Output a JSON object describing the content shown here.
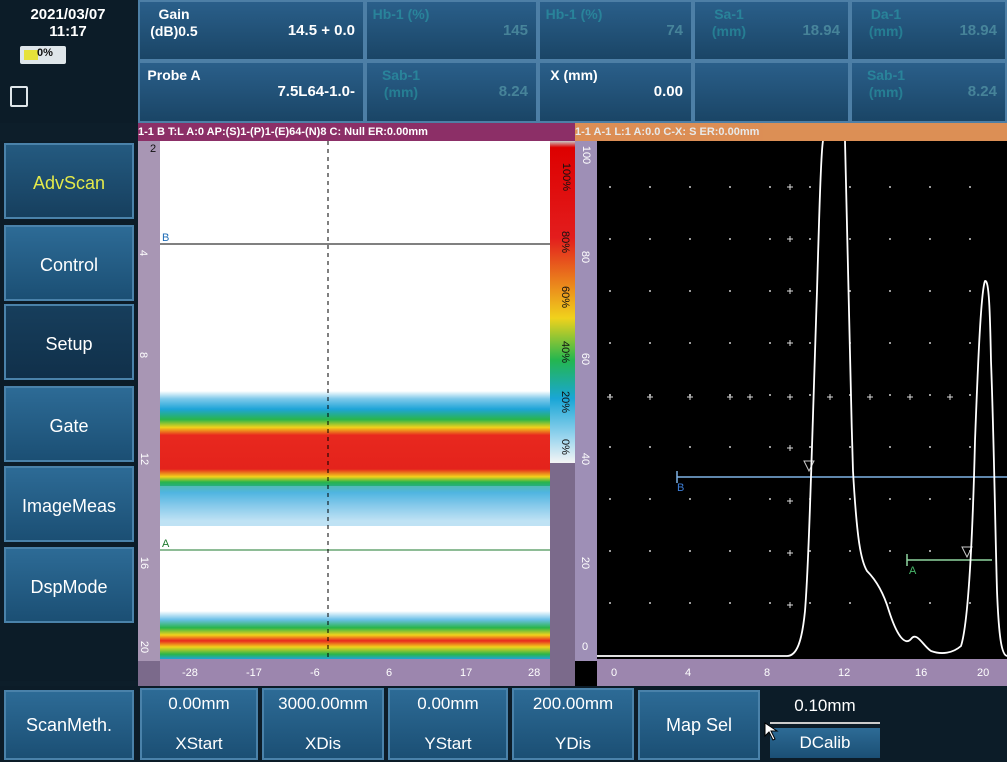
{
  "status": {
    "date": "2021/03/07",
    "time": "11:17",
    "battery_text": "0%"
  },
  "header_cells": [
    {
      "label": "Gain (dB)0.5",
      "value": "14.5 + 0.0",
      "faint": false
    },
    {
      "label": "Hb-1 (%)",
      "value": "145",
      "faint": true
    },
    {
      "label": "Hb-1 (%)",
      "value": "74",
      "faint": true
    },
    {
      "label": "Sa-1 (mm)",
      "value": "18.94",
      "faint": true
    },
    {
      "label": "Da-1 (mm)",
      "value": "18.94",
      "faint": true
    },
    {
      "label": "Probe A",
      "value": "7.5L64-1.0-",
      "faint": false
    },
    {
      "label": "Sab-1 (mm)",
      "value": "8.24",
      "faint": true
    },
    {
      "label": "X (mm)",
      "value": "0.00",
      "faint": false
    },
    {
      "label": "",
      "value": "",
      "faint": true
    },
    {
      "label": "Sab-1 (mm)",
      "value": "8.24",
      "faint": true
    }
  ],
  "strips": {
    "bscan": "1-1 B  T:L A:0  AP:(S)1-(P)1-(E)64-(N)8  C: Null   ER:0.00mm",
    "ascan": "1-1 A-1 L:1 A:0.0 C-X: S  ER:0.00mm"
  },
  "menu": [
    {
      "label": "AdvScan",
      "selected": true
    },
    {
      "label": "Control",
      "selected": false
    },
    {
      "label": "Setup",
      "selected": false
    },
    {
      "label": "Gate",
      "selected": false
    },
    {
      "label": "ImageMeas",
      "selected": false
    },
    {
      "label": "DspMode",
      "selected": false
    }
  ],
  "bscan_axis": {
    "v_labels": [
      "2",
      "4",
      "8",
      "12",
      "16",
      "20"
    ],
    "h_labels": [
      "-28",
      "-17",
      "-6",
      "6",
      "17",
      "28"
    ],
    "colorbar_labels": [
      "100%",
      "80%",
      "60%",
      "40%",
      "20%",
      "0%"
    ],
    "gate_b": "B",
    "gate_a": "A"
  },
  "ascan_axis": {
    "v_labels": [
      "100",
      "80",
      "60",
      "40",
      "20",
      "0"
    ],
    "h_labels": [
      "0",
      "4",
      "8",
      "12",
      "16",
      "20"
    ],
    "gate_b": "B",
    "gate_a": "A"
  },
  "bottom": {
    "scan_method": "ScanMeth.",
    "fields": [
      {
        "value": "0.00mm",
        "label": "XStart"
      },
      {
        "value": "3000.00mm",
        "label": "XDis"
      },
      {
        "value": "0.00mm",
        "label": "YStart"
      },
      {
        "value": "200.00mm",
        "label": "YDis"
      }
    ],
    "map_sel": "Map Sel",
    "dcalib_value": "0.10mm",
    "dcalib_label": "DCalib"
  }
}
